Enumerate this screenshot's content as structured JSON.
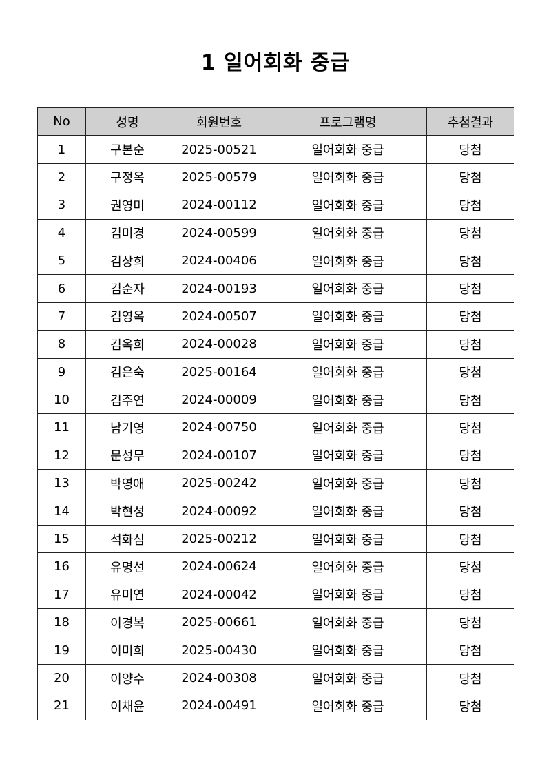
{
  "title": "1 일어회화 중급",
  "table": {
    "headers": [
      "No",
      "성명",
      "회원번호",
      "프로그램명",
      "추첨결과"
    ],
    "header_bg": "#d0d0d0",
    "rows": [
      [
        "1",
        "구본순",
        "2025-00521",
        "일어회화 중급",
        "당첨"
      ],
      [
        "2",
        "구정옥",
        "2025-00579",
        "일어회화 중급",
        "당첨"
      ],
      [
        "3",
        "권영미",
        "2024-00112",
        "일어회화 중급",
        "당첨"
      ],
      [
        "4",
        "김미경",
        "2024-00599",
        "일어회화 중급",
        "당첨"
      ],
      [
        "5",
        "김상희",
        "2024-00406",
        "일어회화 중급",
        "당첨"
      ],
      [
        "6",
        "김순자",
        "2024-00193",
        "일어회화 중급",
        "당첨"
      ],
      [
        "7",
        "김영옥",
        "2024-00507",
        "일어회화 중급",
        "당첨"
      ],
      [
        "8",
        "김옥희",
        "2024-00028",
        "일어회화 중급",
        "당첨"
      ],
      [
        "9",
        "김은숙",
        "2025-00164",
        "일어회화 중급",
        "당첨"
      ],
      [
        "10",
        "김주연",
        "2024-00009",
        "일어회화 중급",
        "당첨"
      ],
      [
        "11",
        "남기영",
        "2024-00750",
        "일어회화 중급",
        "당첨"
      ],
      [
        "12",
        "문성무",
        "2024-00107",
        "일어회화 중급",
        "당첨"
      ],
      [
        "13",
        "박영애",
        "2025-00242",
        "일어회화 중급",
        "당첨"
      ],
      [
        "14",
        "박현성",
        "2024-00092",
        "일어회화 중급",
        "당첨"
      ],
      [
        "15",
        "석화심",
        "2025-00212",
        "일어회화 중급",
        "당첨"
      ],
      [
        "16",
        "유명선",
        "2024-00624",
        "일어회화 중급",
        "당첨"
      ],
      [
        "17",
        "유미연",
        "2024-00042",
        "일어회화 중급",
        "당첨"
      ],
      [
        "18",
        "이경복",
        "2025-00661",
        "일어회화 중급",
        "당첨"
      ],
      [
        "19",
        "이미희",
        "2025-00430",
        "일어회화 중급",
        "당첨"
      ],
      [
        "20",
        "이양수",
        "2024-00308",
        "일어회화 중급",
        "당첨"
      ],
      [
        "21",
        "이채윤",
        "2024-00491",
        "일어회화 중급",
        "당첨"
      ]
    ]
  }
}
